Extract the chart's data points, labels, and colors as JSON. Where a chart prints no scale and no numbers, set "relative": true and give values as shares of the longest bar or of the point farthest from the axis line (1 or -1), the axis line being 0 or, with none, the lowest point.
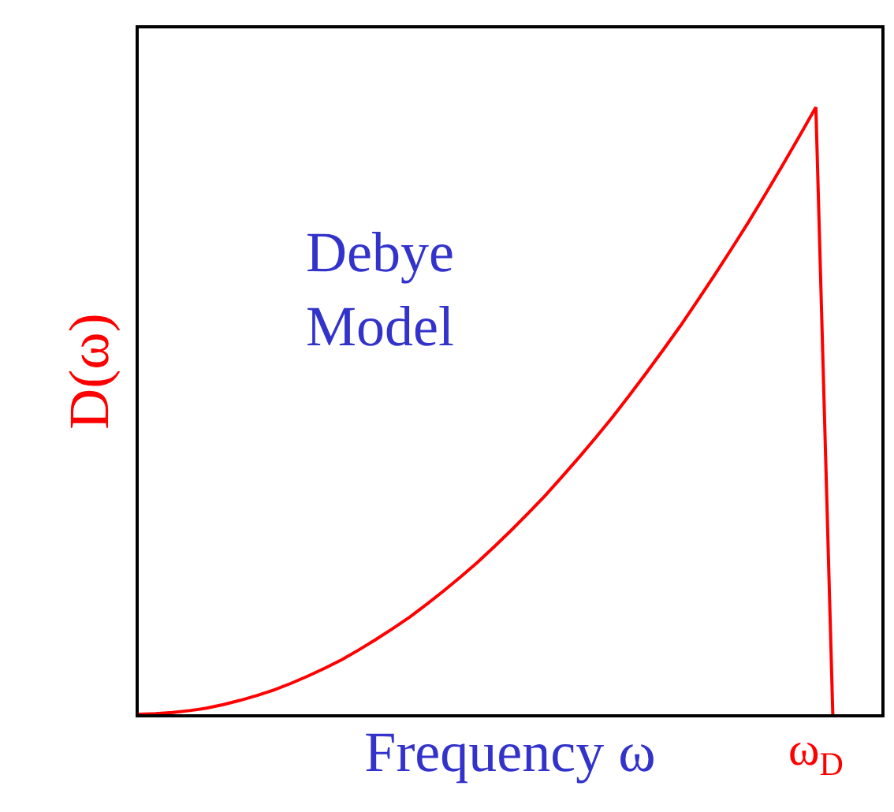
{
  "chart_data": {
    "type": "line",
    "relative": true,
    "xlabel": "Frequency ω",
    "ylabel": "D(ω)",
    "annotations": [
      "Debye\nModel",
      {
        "text": "ω$_{D}$"
      }
    ],
    "categories": [
      null,
      null,
      null,
      null,
      null,
      null,
      null,
      null,
      null,
      null,
      null,
      null,
      null,
      null,
      null,
      null,
      null,
      null,
      null,
      null,
      null,
      null,
      null,
      null,
      null,
      null,
      null,
      null,
      null,
      null,
      null,
      null,
      null,
      null,
      null,
      null,
      null,
      null,
      null,
      null,
      null,
      null
    ],
    "series": [
      {
        "color": "#ff0000",
        "values": [
          0,
          0.001,
          0.003,
          0.006,
          0.01,
          0.016,
          0.023,
          0.031,
          0.04,
          0.051,
          0.063,
          0.076,
          0.09,
          0.106,
          0.123,
          0.141,
          0.16,
          0.181,
          0.203,
          0.226,
          0.25,
          0.276,
          0.303,
          0.331,
          0.36,
          0.391,
          0.423,
          0.456,
          0.49,
          0.526,
          0.563,
          0.601,
          0.64,
          0.681,
          0.723,
          0.766,
          0.81,
          0.856,
          0.903,
          0.951,
          1,
          0
        ]
      }
    ],
    "marker": "none",
    "line_style": "solid"
  }
}
